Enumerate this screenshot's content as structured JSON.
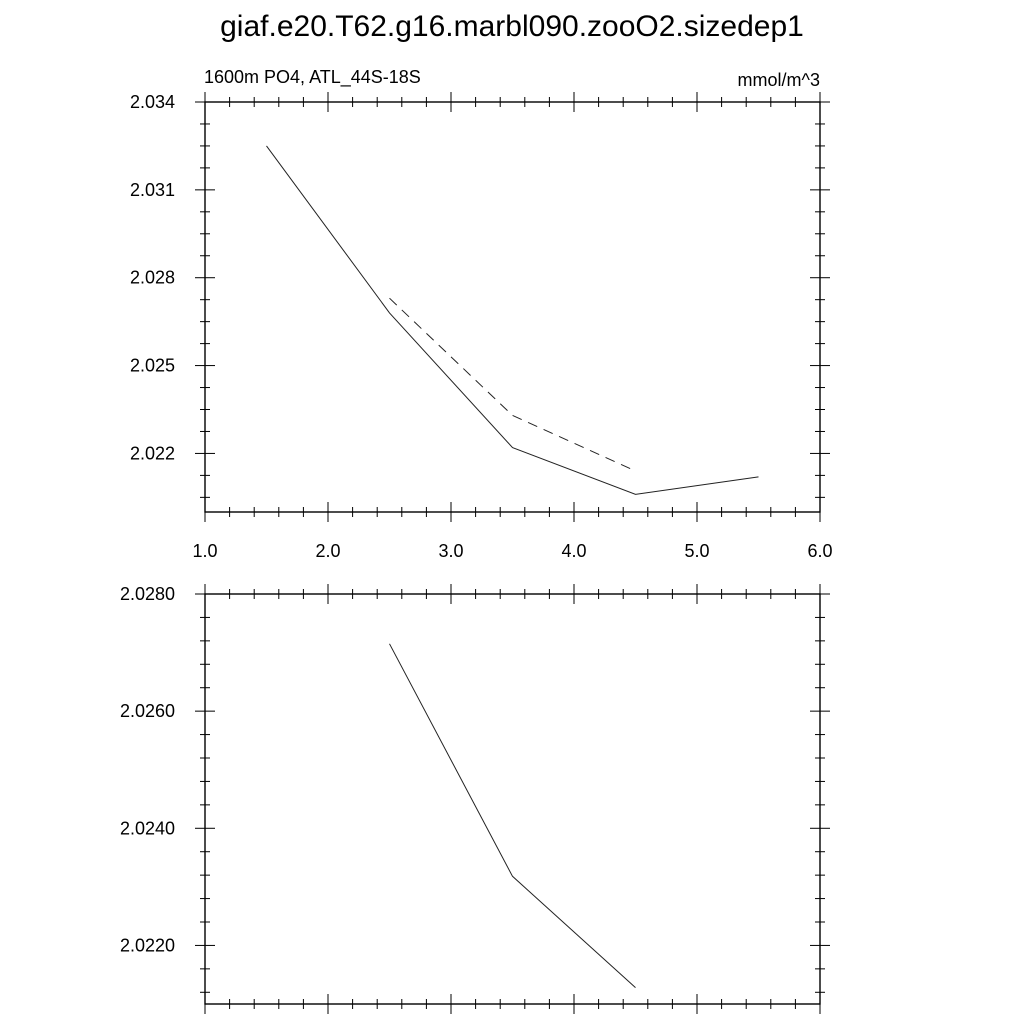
{
  "title": "giaf.e20.T62.g16.marbl090.zooO2.sizedep1",
  "left_label": "1600m PO4, ATL_44S-18S",
  "right_label": "mmol/m^3",
  "chart_data": [
    {
      "type": "line",
      "xlim": [
        1.0,
        6.0
      ],
      "ylim": [
        2.02,
        2.034
      ],
      "x_ticks": [
        "1.0",
        "2.0",
        "3.0",
        "4.0",
        "5.0",
        "6.0"
      ],
      "y_ticks": [
        "2.034",
        "2.031",
        "2.028",
        "2.025",
        "2.022"
      ],
      "y_tick_values": [
        2.034,
        2.031,
        2.028,
        2.025,
        2.022
      ],
      "series": [
        {
          "style": "solid",
          "x": [
            1.5,
            2.5,
            3.5,
            4.5,
            5.5
          ],
          "y": [
            2.0325,
            2.0268,
            2.0222,
            2.0206,
            2.0212
          ]
        },
        {
          "style": "dashed",
          "x": [
            2.5,
            3.5,
            4.5
          ],
          "y": [
            2.0273,
            2.0233,
            2.0214
          ]
        }
      ],
      "grid": false
    },
    {
      "type": "line",
      "xlim": [
        1.0,
        6.0
      ],
      "ylim": [
        2.021,
        2.028
      ],
      "x_ticks": [],
      "y_ticks": [
        "2.0280",
        "2.0260",
        "2.0240",
        "2.0220"
      ],
      "y_tick_values": [
        2.028,
        2.026,
        2.024,
        2.022
      ],
      "series": [
        {
          "style": "solid",
          "x": [
            2.5,
            3.5,
            4.5
          ],
          "y": [
            2.02715,
            2.02318,
            2.02128
          ]
        }
      ],
      "grid": false
    }
  ]
}
